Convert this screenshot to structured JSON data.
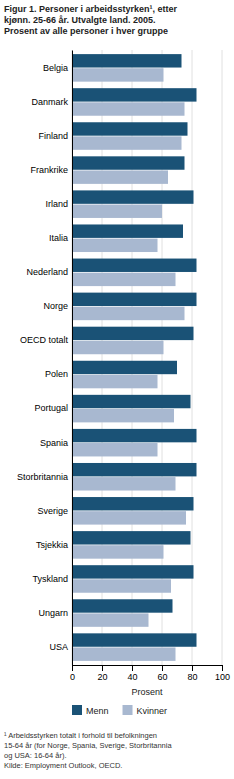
{
  "chart_data": {
    "type": "bar",
    "orientation": "horizontal",
    "title": "Figur 1. Personer i arbeidsstyrken¹, etter\nkjønn. 25-66 år. Utvalgte land. 2005.\nProsent av alle personer i hver gruppe",
    "categories": [
      "Belgia",
      "Danmark",
      "Finland",
      "Frankrike",
      "Irland",
      "Italia",
      "Nederland",
      "Norge",
      "OECD totalt",
      "Polen",
      "Portugal",
      "Spania",
      "Storbritannia",
      "Sverige",
      "Tsjekkia",
      "Tyskland",
      "Ungarn",
      "USA"
    ],
    "series": [
      {
        "name": "Menn",
        "color": "#1a5276",
        "values": [
          73,
          83,
          77,
          75,
          81,
          74,
          83,
          83,
          81,
          70,
          79,
          83,
          83,
          81,
          79,
          81,
          67,
          83
        ]
      },
      {
        "name": "Kvinner",
        "color": "#a8b8d0",
        "values": [
          61,
          75,
          73,
          64,
          60,
          57,
          69,
          75,
          61,
          57,
          68,
          57,
          69,
          76,
          61,
          66,
          51,
          69
        ]
      }
    ],
    "xlabel": "Prosent",
    "xlim": [
      0,
      100
    ],
    "xticks": [
      0,
      20,
      40,
      60,
      80,
      100
    ],
    "grid": true,
    "legend": "bottom",
    "footnote": "¹ Arbeidsstyrken totalt i forhold til befolkningen\n15-64 år (for Norge, Spania, Sverige, Storbritannia\nog USA: 16-64 år).\nKilde: Employment Outlook, OECD."
  }
}
